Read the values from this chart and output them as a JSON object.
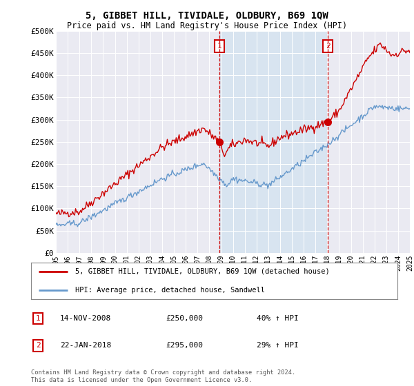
{
  "title": "5, GIBBET HILL, TIVIDALE, OLDBURY, B69 1QW",
  "subtitle": "Price paid vs. HM Land Registry's House Price Index (HPI)",
  "ylabel_ticks": [
    "£0",
    "£50K",
    "£100K",
    "£150K",
    "£200K",
    "£250K",
    "£300K",
    "£350K",
    "£400K",
    "£450K",
    "£500K"
  ],
  "ytick_values": [
    0,
    50000,
    100000,
    150000,
    200000,
    250000,
    300000,
    350000,
    400000,
    450000,
    500000
  ],
  "ylim": [
    0,
    500000
  ],
  "red_color": "#cc0000",
  "blue_color": "#6699cc",
  "vline_color": "#cc0000",
  "shade_color": "#d8e4f0",
  "transaction1": {
    "date": "14-NOV-2008",
    "price": 250000,
    "hpi_pct": "40% ↑ HPI",
    "year": 2008.87
  },
  "transaction2": {
    "date": "22-JAN-2018",
    "price": 295000,
    "hpi_pct": "29% ↑ HPI",
    "year": 2018.05
  },
  "legend_label_red": "5, GIBBET HILL, TIVIDALE, OLDBURY, B69 1QW (detached house)",
  "legend_label_blue": "HPI: Average price, detached house, Sandwell",
  "footnote": "Contains HM Land Registry data © Crown copyright and database right 2024.\nThis data is licensed under the Open Government Licence v3.0.",
  "background_color": "#ffffff",
  "plot_bg_color": "#eaeaf2",
  "xlim_start": 1995,
  "xlim_end": 2025
}
